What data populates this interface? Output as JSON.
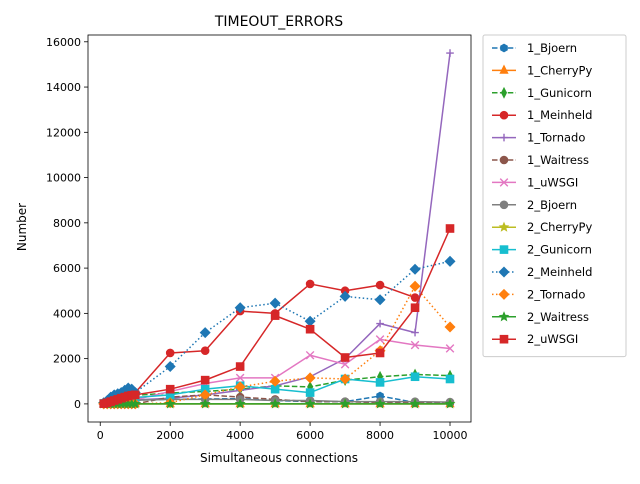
{
  "chart_data": {
    "type": "line",
    "title": "TIMEOUT_ERRORS",
    "xlabel": "Simultaneous connections",
    "ylabel": "Number",
    "xlim": [
      -350,
      10600
    ],
    "ylim": [
      -800,
      16300
    ],
    "xticks": [
      0,
      2000,
      4000,
      6000,
      8000,
      10000
    ],
    "xtick_labels": [
      "0",
      "2000",
      "4000",
      "6000",
      "8000",
      "10000"
    ],
    "yticks": [
      0,
      2000,
      4000,
      6000,
      8000,
      10000,
      12000,
      14000,
      16000
    ],
    "ytick_labels": [
      "0",
      "2000",
      "4000",
      "6000",
      "8000",
      "10000",
      "12000",
      "14000",
      "16000"
    ],
    "grid": false,
    "legend_position": "outside-right",
    "x": [
      100,
      200,
      300,
      400,
      500,
      600,
      700,
      800,
      900,
      1000,
      2000,
      3000,
      4000,
      5000,
      6000,
      7000,
      8000,
      9000,
      10000
    ],
    "series": [
      {
        "name": "1_Bjoern",
        "color": "#1f77b4",
        "marker": "h",
        "dash": "dash",
        "values": [
          10,
          30,
          60,
          80,
          100,
          120,
          130,
          150,
          160,
          170,
          200,
          220,
          230,
          150,
          100,
          100,
          350,
          60,
          50
        ]
      },
      {
        "name": "1_CherryPy",
        "color": "#ff7f0e",
        "marker": "^",
        "dash": "solid",
        "values": [
          0,
          0,
          0,
          0,
          0,
          0,
          0,
          0,
          0,
          0,
          0,
          0,
          0,
          0,
          0,
          0,
          0,
          0,
          0
        ]
      },
      {
        "name": "1_Gunicorn",
        "color": "#2ca02c",
        "marker": "d",
        "dash": "dash",
        "values": [
          20,
          50,
          100,
          150,
          200,
          250,
          300,
          320,
          350,
          380,
          480,
          550,
          650,
          800,
          750,
          1050,
          1200,
          1300,
          1250
        ]
      },
      {
        "name": "1_Meinheld",
        "color": "#d62728",
        "marker": "o",
        "dash": "solid",
        "values": [
          50,
          100,
          150,
          200,
          250,
          300,
          350,
          400,
          450,
          500,
          2250,
          2350,
          4100,
          4000,
          5300,
          5000,
          5250,
          4700,
          null
        ]
      },
      {
        "name": "1_Tornado",
        "color": "#9467bd",
        "marker": "+",
        "dash": "solid",
        "values": [
          0,
          20,
          40,
          60,
          80,
          100,
          120,
          140,
          160,
          180,
          250,
          400,
          600,
          800,
          1200,
          2000,
          3550,
          3150,
          15500
        ]
      },
      {
        "name": "1_Waitress",
        "color": "#8c564b",
        "marker": "o",
        "dash": "dash",
        "values": [
          0,
          0,
          0,
          0,
          0,
          0,
          0,
          0,
          0,
          0,
          300,
          400,
          300,
          200,
          100,
          100,
          50,
          50,
          50
        ]
      },
      {
        "name": "1_uWSGI",
        "color": "#e377c2",
        "marker": "x",
        "dash": "solid",
        "values": [
          10,
          30,
          50,
          70,
          90,
          110,
          130,
          150,
          170,
          190,
          550,
          900,
          1150,
          1150,
          2150,
          1750,
          2850,
          2600,
          2450
        ]
      },
      {
        "name": "2_Bjoern",
        "color": "#7f7f7f",
        "marker": "o",
        "dash": "solid",
        "values": [
          10,
          20,
          30,
          50,
          60,
          80,
          100,
          120,
          140,
          160,
          200,
          200,
          200,
          150,
          150,
          100,
          100,
          100,
          80
        ]
      },
      {
        "name": "2_CherryPy",
        "color": "#bcbd22",
        "marker": "*",
        "dash": "solid",
        "values": [
          0,
          0,
          0,
          0,
          0,
          0,
          0,
          0,
          0,
          0,
          0,
          0,
          0,
          0,
          0,
          0,
          0,
          0,
          0
        ]
      },
      {
        "name": "2_Gunicorn",
        "color": "#17becf",
        "marker": "s",
        "dash": "solid",
        "values": [
          20,
          40,
          70,
          100,
          130,
          160,
          190,
          220,
          250,
          280,
          400,
          650,
          800,
          650,
          500,
          1100,
          950,
          1200,
          1100
        ]
      },
      {
        "name": "2_Meinheld",
        "color": "#1f77b4",
        "marker": "D",
        "dash": "dot",
        "values": [
          50,
          150,
          300,
          400,
          450,
          500,
          600,
          700,
          650,
          500,
          1650,
          3150,
          4250,
          4450,
          3650,
          4750,
          4600,
          5950,
          6300
        ]
      },
      {
        "name": "2_Tornado",
        "color": "#ff7f0e",
        "marker": "D",
        "dash": "dot",
        "values": [
          0,
          0,
          0,
          0,
          0,
          0,
          0,
          0,
          0,
          0,
          50,
          400,
          750,
          1000,
          1150,
          1100,
          2350,
          5200,
          3400
        ]
      },
      {
        "name": "2_Waitress",
        "color": "#2ca02c",
        "marker": "*",
        "dash": "solid",
        "values": [
          0,
          0,
          0,
          0,
          0,
          0,
          0,
          0,
          0,
          0,
          0,
          0,
          0,
          0,
          0,
          0,
          0,
          0,
          0
        ]
      },
      {
        "name": "2_uWSGI",
        "color": "#d62728",
        "marker": "s",
        "dash": "solid",
        "values": [
          10,
          50,
          100,
          150,
          200,
          250,
          300,
          350,
          380,
          400,
          650,
          1050,
          1650,
          3900,
          3300,
          2050,
          2250,
          4250,
          7750
        ]
      }
    ]
  }
}
